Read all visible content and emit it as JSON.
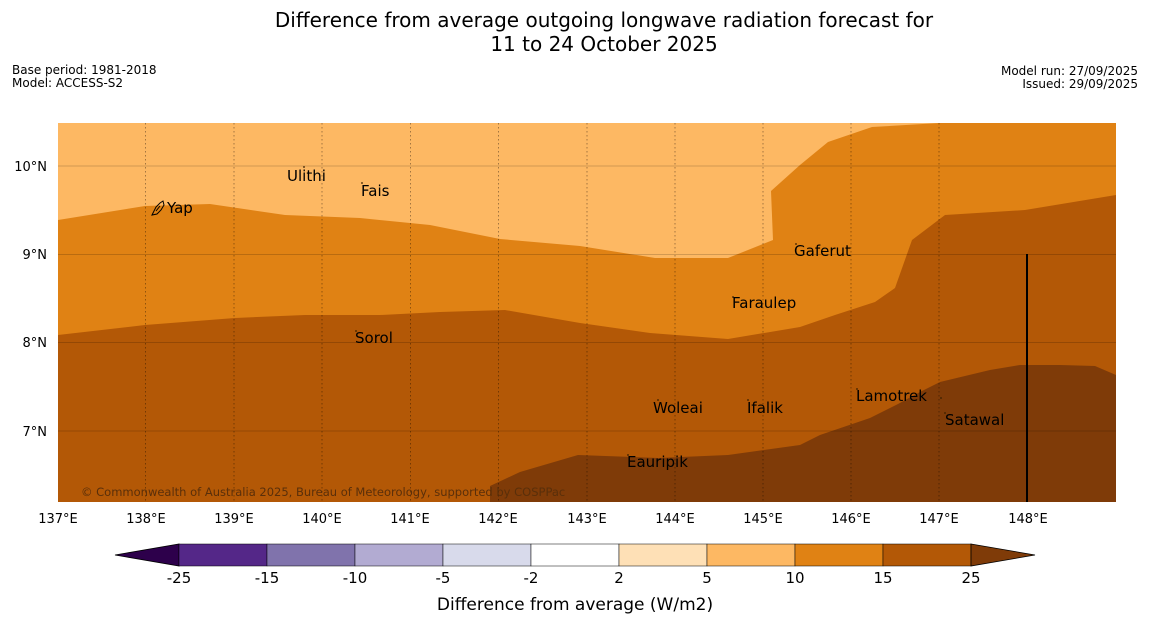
{
  "title": {
    "line1": "Difference from average outgoing longwave radiation forecast for",
    "line2": "11 to 24 October 2025"
  },
  "meta": {
    "base_period": "Base period: 1981-2018",
    "model": "Model: ACCESS-S2",
    "model_run": "Model run: 27/09/2025",
    "issued": "Issued: 29/09/2025"
  },
  "axes": {
    "lon_labels": [
      "137°E",
      "138°E",
      "139°E",
      "140°E",
      "141°E",
      "142°E",
      "143°E",
      "144°E",
      "145°E",
      "146°E",
      "147°E",
      "148°E"
    ],
    "lat_labels": [
      "10°N",
      "9°N",
      "8°N",
      "7°N"
    ]
  },
  "places": [
    "Ulithi",
    "Fais",
    "Yap",
    "Gaferut",
    "Faraulep",
    "Sorol",
    "Woleai",
    "Ifalik",
    "Lamotrek",
    "Satawal",
    "Eauripik"
  ],
  "copyright": "© Commonwealth of Australia 2025, Bureau of Meteorology, supported by COSPPac",
  "colorbar": {
    "ticks": [
      "-25",
      "-15",
      "-10",
      "-5",
      "-2",
      "2",
      "5",
      "10",
      "15",
      "25"
    ],
    "label": "Difference from average (W/m2)",
    "colors": [
      "#542788",
      "#8073ac",
      "#b2abd2",
      "#d8daeb",
      "#ffffff",
      "#fee0b6",
      "#fdb863",
      "#e08214",
      "#b35806"
    ],
    "under_color": "#2d004b",
    "over_color": "#7f3b08"
  }
}
